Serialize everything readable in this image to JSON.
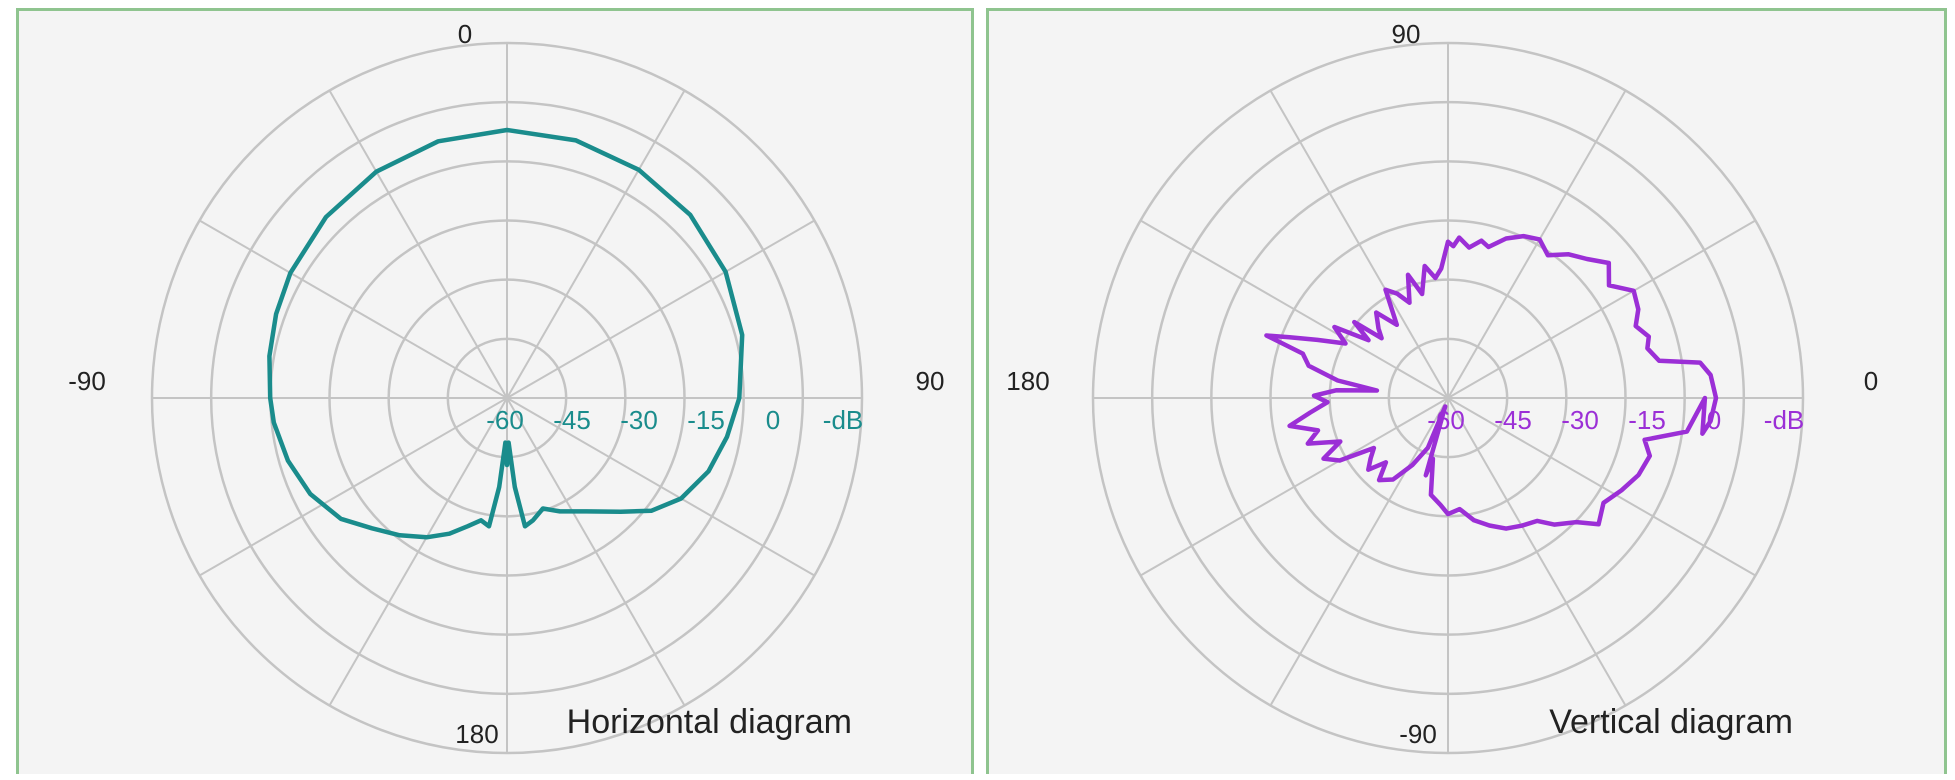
{
  "colors": {
    "horizontal_series": "#1a8c8c",
    "vertical_series": "#9b2fd6",
    "grid": "#c4c4c4",
    "panel_border": "#8fc48f",
    "panel_background": "#f4f4f4"
  },
  "chart_data": [
    {
      "type": "polar-line",
      "title": "Horizontal diagram",
      "radial_unit": "-dB",
      "radial_ticks": [
        "-60",
        "-45",
        "-30",
        "-15",
        "0"
      ],
      "radial_range": [
        -60,
        0
      ],
      "angle_labels": {
        "top": "0",
        "right": "90",
        "bottom": "180",
        "left": "-90"
      },
      "angle_zero_direction": "top",
      "angle_direction": "clockwise",
      "grid": true,
      "series": [
        {
          "color": "#1a8c8c",
          "points": [
            [
              0,
              0
            ],
            [
              15,
              -0.3
            ],
            [
              30,
              -1
            ],
            [
              45,
              -2
            ],
            [
              60,
              -3.5
            ],
            [
              75,
              -5.5
            ],
            [
              90,
              -8
            ],
            [
              100,
              -10
            ],
            [
              110,
              -12
            ],
            [
              120,
              -15
            ],
            [
              128,
              -19
            ],
            [
              135,
              -24
            ],
            [
              145,
              -29
            ],
            [
              155,
              -32
            ],
            [
              162,
              -34
            ],
            [
              168,
              -32
            ],
            [
              172,
              -31
            ],
            [
              175,
              -40
            ],
            [
              178,
              -50
            ],
            [
              180,
              -45
            ],
            [
              182,
              -50
            ],
            [
              185,
              -40
            ],
            [
              188,
              -31
            ],
            [
              192,
              -32
            ],
            [
              197,
              -30
            ],
            [
              203,
              -27
            ],
            [
              210,
              -24
            ],
            [
              218,
              -21
            ],
            [
              226,
              -18
            ],
            [
              234,
              -14
            ],
            [
              244,
              -11
            ],
            [
              254,
              -9
            ],
            [
              264,
              -7.5
            ],
            [
              270,
              -7
            ],
            [
              280,
              -6
            ],
            [
              290,
              -5
            ],
            [
              300,
              -4
            ],
            [
              315,
              -2.7
            ],
            [
              330,
              -1.5
            ],
            [
              345,
              -0.5
            ],
            [
              360,
              0
            ]
          ]
        }
      ]
    },
    {
      "type": "polar-line",
      "title": "Vertical diagram",
      "radial_unit": "-dB",
      "radial_ticks": [
        "-60",
        "-45",
        "-30",
        "-15",
        "0"
      ],
      "radial_range": [
        -60,
        0
      ],
      "angle_labels": {
        "top": "90",
        "right": "0",
        "bottom": "-90",
        "left": "180"
      },
      "angle_zero_direction": "right",
      "angle_direction": "counterclockwise",
      "grid": true,
      "series": [
        {
          "color": "#9b2fd6",
          "points": [
            [
              -8,
              -2.5
            ],
            [
              -5,
              -1
            ],
            [
              0,
              0
            ],
            [
              5,
              -1
            ],
            [
              8,
              -3
            ],
            [
              10,
              -12
            ],
            [
              14,
              -14
            ],
            [
              17,
              -13
            ],
            [
              21,
              -15
            ],
            [
              25,
              -13
            ],
            [
              30,
              -12
            ],
            [
              35,
              -16
            ],
            [
              40,
              -13
            ],
            [
              45,
              -16
            ],
            [
              50,
              -18
            ],
            [
              55,
              -21
            ],
            [
              60,
              -19
            ],
            [
              65,
              -20
            ],
            [
              70,
              -22
            ],
            [
              75,
              -25
            ],
            [
              78,
              -24
            ],
            [
              82,
              -26
            ],
            [
              86,
              -24
            ],
            [
              88,
              -26
            ],
            [
              90,
              -25
            ],
            [
              93,
              -31
            ],
            [
              96,
              -33
            ],
            [
              100,
              -30
            ],
            [
              104,
              -36
            ],
            [
              108,
              -31
            ],
            [
              112,
              -37
            ],
            [
              116,
              -34
            ],
            [
              120,
              -32
            ],
            [
              125,
              -40
            ],
            [
              130,
              -35
            ],
            [
              135,
              -38
            ],
            [
              138,
              -40
            ],
            [
              141,
              -33
            ],
            [
              144,
              -38
            ],
            [
              148,
              -30
            ],
            [
              152,
              -34
            ],
            [
              156,
              -28
            ],
            [
              159,
              -22
            ],
            [
              161,
              -17
            ],
            [
              163,
              -26
            ],
            [
              167,
              -28
            ],
            [
              171,
              -35
            ],
            [
              174,
              -44
            ],
            [
              176,
              -35
            ],
            [
              179,
              -30
            ],
            [
              182,
              -33
            ],
            [
              186,
              -29
            ],
            [
              190,
              -24
            ],
            [
              194,
              -30
            ],
            [
              198,
              -27
            ],
            [
              202,
              -34
            ],
            [
              206,
              -29
            ],
            [
              210,
              -32
            ],
            [
              214,
              -40
            ],
            [
              218,
              -38
            ],
            [
              222,
              -36
            ],
            [
              226,
              -40
            ],
            [
              230,
              -36
            ],
            [
              236,
              -38
            ],
            [
              242,
              -43
            ],
            [
              248,
              -48
            ],
            [
              252,
              -58
            ],
            [
              254,
              -42
            ],
            [
              256,
              -46
            ],
            [
              260,
              -38
            ],
            [
              266,
              -36
            ],
            [
              270,
              -34
            ],
            [
              276,
              -35
            ],
            [
              282,
              -32
            ],
            [
              288,
              -30
            ],
            [
              294,
              -28
            ],
            [
              300,
              -27
            ],
            [
              306,
              -26
            ],
            [
              310,
              -23
            ],
            [
              316,
              -20
            ],
            [
              320,
              -16
            ],
            [
              326,
              -18
            ],
            [
              332,
              -16
            ],
            [
              338,
              -14
            ],
            [
              344,
              -13
            ],
            [
              348,
              -15
            ],
            [
              352,
              -6
            ],
            [
              360,
              -2.5
            ]
          ]
        }
      ]
    }
  ]
}
